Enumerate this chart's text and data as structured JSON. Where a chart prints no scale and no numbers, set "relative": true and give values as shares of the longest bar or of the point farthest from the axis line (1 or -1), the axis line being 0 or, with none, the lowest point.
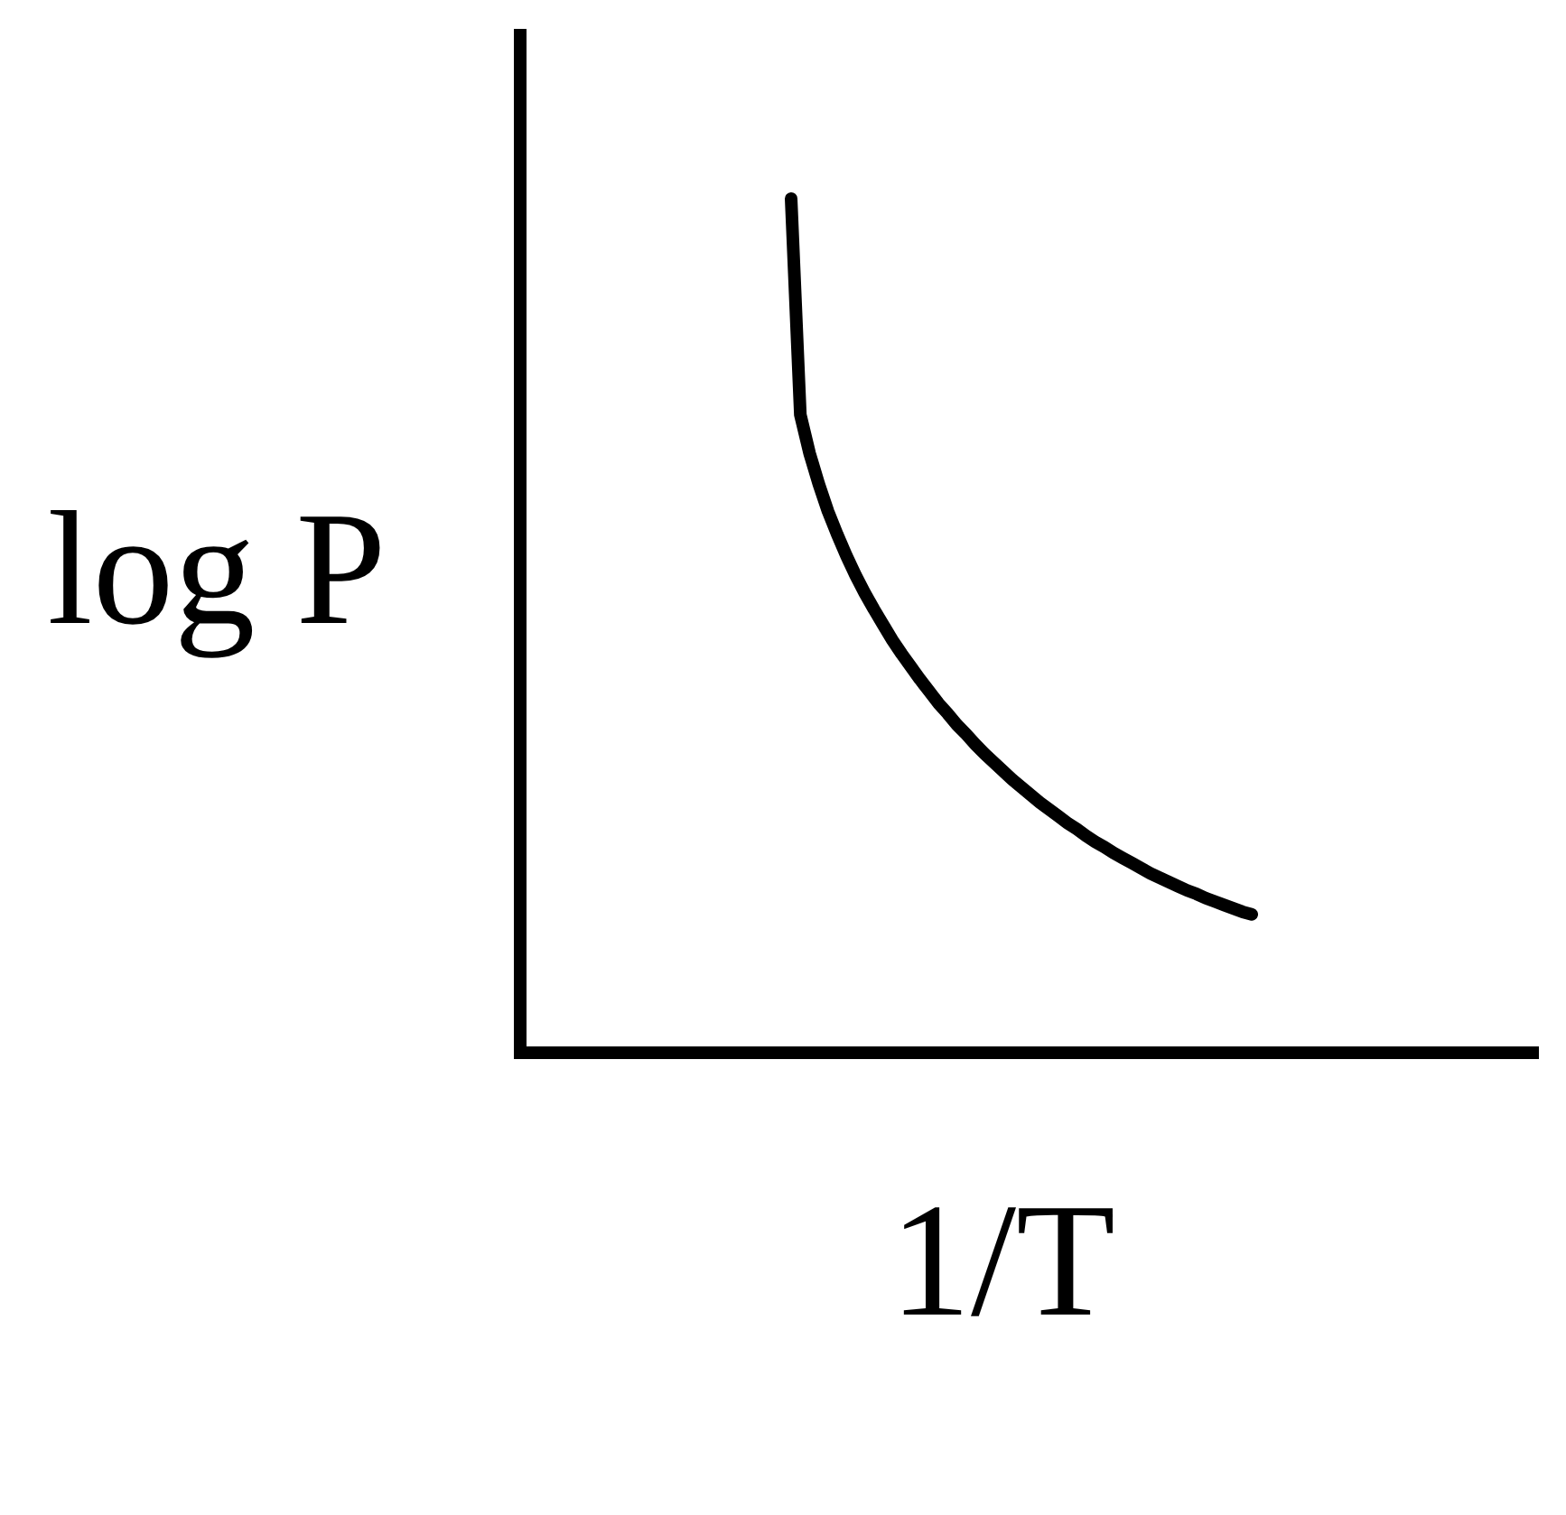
{
  "chart_data": {
    "type": "line",
    "xlabel": "1/T",
    "ylabel": "log P",
    "relative": true,
    "categories": [
      null,
      null,
      null,
      null,
      null,
      null,
      null,
      null,
      null,
      null,
      null,
      null,
      null,
      null,
      null,
      null,
      null,
      null,
      null,
      null,
      null,
      null,
      null,
      null,
      null,
      null,
      null,
      null,
      null,
      null,
      null,
      null,
      null,
      null,
      null,
      null,
      null,
      null,
      null,
      null,
      null,
      null,
      null,
      null,
      null,
      null,
      null,
      null,
      null,
      null,
      null
    ],
    "series": [
      {
        "color": "#000000",
        "values": [
          1.0,
          0.747,
          0.702,
          0.666,
          0.634,
          0.607,
          0.582,
          0.559,
          0.538,
          0.519,
          0.501,
          0.483,
          0.467,
          0.452,
          0.437,
          0.423,
          0.409,
          0.397,
          0.384,
          0.373,
          0.361,
          0.35,
          0.34,
          0.33,
          0.32,
          0.311,
          0.302,
          0.293,
          0.285,
          0.277,
          0.269,
          0.262,
          0.254,
          0.247,
          0.241,
          0.234,
          0.228,
          0.222,
          0.216,
          0.21,
          0.205,
          0.2,
          0.195,
          0.19,
          0.186,
          0.181,
          0.177,
          0.173,
          0.169,
          0.165,
          0.162
        ]
      }
    ]
  }
}
